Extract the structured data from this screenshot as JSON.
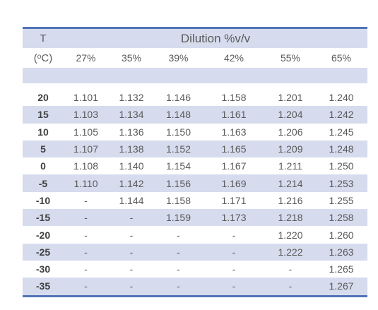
{
  "header": {
    "t_label": "T",
    "unit_prefix": "(",
    "unit_degree": "o",
    "unit_suffix": "C)",
    "dilution_title": "Dilution %v/v",
    "dilutions": [
      "27%",
      "35%",
      "39%",
      "42%",
      "55%",
      "65%"
    ]
  },
  "rows": [
    {
      "t": "20",
      "v": [
        "1.101",
        "1.132",
        "1.146",
        "1.158",
        "1.201",
        "1.240"
      ]
    },
    {
      "t": "15",
      "v": [
        "1.103",
        "1.134",
        "1.148",
        "1.161",
        "1.204",
        "1.242"
      ]
    },
    {
      "t": "10",
      "v": [
        "1.105",
        "1.136",
        "1.150",
        "1.163",
        "1.206",
        "1.245"
      ]
    },
    {
      "t": "5",
      "v": [
        "1.107",
        "1.138",
        "1.152",
        "1.165",
        "1.209",
        "1.248"
      ]
    },
    {
      "t": "0",
      "v": [
        "1.108",
        "1.140",
        "1.154",
        "1.167",
        "1.211",
        "1.250"
      ]
    },
    {
      "t": "-5",
      "v": [
        "1.110",
        "1.142",
        "1.156",
        "1.169",
        "1.214",
        "1.253"
      ]
    },
    {
      "t": "-10",
      "v": [
        "-",
        "1.144",
        "1.158",
        "1.171",
        "1.216",
        "1.255"
      ]
    },
    {
      "t": "-15",
      "v": [
        "-",
        "-",
        "1.159",
        "1.173",
        "1.218",
        "1.258"
      ]
    },
    {
      "t": "-20",
      "v": [
        "-",
        "-",
        "-",
        "-",
        "1.220",
        "1.260"
      ]
    },
    {
      "t": "-25",
      "v": [
        "-",
        "-",
        "-",
        "-",
        "1.222",
        "1.263"
      ]
    },
    {
      "t": "-30",
      "v": [
        "-",
        "-",
        "-",
        "-",
        "-",
        "1.265"
      ]
    },
    {
      "t": "-35",
      "v": [
        "-",
        "-",
        "-",
        "-",
        "-",
        "1.267"
      ]
    }
  ],
  "colors": {
    "rule": "#4f73b6",
    "band": "#d6dcee",
    "text": "#595959"
  }
}
